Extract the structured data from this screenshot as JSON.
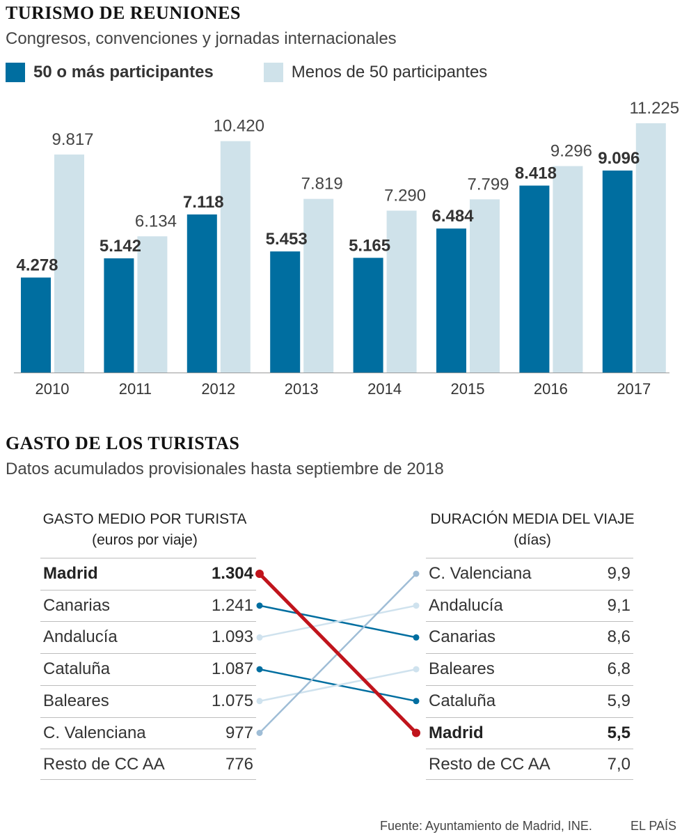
{
  "chart1": {
    "title": "TURISMO DE REUNIONES",
    "subtitle": "Congresos, convenciones y jornadas internacionales",
    "legend": [
      {
        "label": "50 o más participantes",
        "color": "#006ea0"
      },
      {
        "label": "Menos de 50 participantes",
        "color": "#cfe2ea"
      }
    ]
  },
  "chart_data": [
    {
      "type": "bar",
      "title": "TURISMO DE REUNIONES",
      "subtitle": "Congresos, convenciones y jornadas internacionales",
      "categories": [
        "2010",
        "2011",
        "2012",
        "2013",
        "2014",
        "2015",
        "2016",
        "2017"
      ],
      "series": [
        {
          "name": "50 o más participantes",
          "color": "#006ea0",
          "values": [
            4278,
            5142,
            7118,
            5453,
            5165,
            6484,
            8418,
            9096
          ],
          "labels": [
            "4.278",
            "5.142",
            "7.118",
            "5.453",
            "5.165",
            "6.484",
            "8.418",
            "9.096"
          ]
        },
        {
          "name": "Menos de 50 participantes",
          "color": "#cfe2ea",
          "values": [
            9817,
            6134,
            10420,
            7819,
            7290,
            7799,
            9296,
            11225
          ],
          "labels": [
            "9.817",
            "6.134",
            "10.420",
            "7.819",
            "7.290",
            "7.799",
            "9.296",
            "11.225"
          ]
        }
      ],
      "ylim": [
        0,
        11225
      ],
      "xlabel": "",
      "ylabel": "",
      "grid": false
    },
    {
      "type": "table",
      "title": "GASTO DE LOS TURISTAS",
      "subtitle": "Datos acumulados provisionales hasta septiembre de 2018",
      "left": {
        "heading": "GASTO MEDIO POR TURISTA",
        "unit": "(euros por viaje)",
        "rows": [
          {
            "region": "Madrid",
            "value": "1.304",
            "bold": true
          },
          {
            "region": "Canarias",
            "value": "1.241"
          },
          {
            "region": "Andalucía",
            "value": "1.093"
          },
          {
            "region": "Cataluña",
            "value": "1.087"
          },
          {
            "region": "Baleares",
            "value": "1.075"
          },
          {
            "region": "C. Valenciana",
            "value": "977"
          },
          {
            "region": "Resto de CC AA",
            "value": "776"
          }
        ]
      },
      "right": {
        "heading": "DURACIÓN MEDIA DEL VIAJE",
        "unit": "(días)",
        "rows": [
          {
            "region": "C. Valenciana",
            "value": "9,9"
          },
          {
            "region": "Andalucía",
            "value": "9,1"
          },
          {
            "region": "Canarias",
            "value": "8,6"
          },
          {
            "region": "Baleares",
            "value": "6,8"
          },
          {
            "region": "Cataluña",
            "value": "5,9"
          },
          {
            "region": "Madrid",
            "value": "5,5",
            "bold": true
          },
          {
            "region": "Resto de CC AA",
            "value": "7,0"
          }
        ]
      },
      "connectors": [
        {
          "region": "Madrid",
          "color": "#c0141c",
          "emphasis": true
        },
        {
          "region": "Canarias",
          "color": "#006ea0"
        },
        {
          "region": "Andalucía",
          "color": "#cfe2ee"
        },
        {
          "region": "Cataluña",
          "color": "#006ea0"
        },
        {
          "region": "Baleares",
          "color": "#cfe2ee"
        },
        {
          "region": "C. Valenciana",
          "color": "#9fbdd6"
        }
      ]
    }
  ],
  "chart2": {
    "title": "GASTO DE LOS TURISTAS",
    "subtitle": "Datos acumulados provisionales hasta septiembre de 2018"
  },
  "footer": {
    "source": "Fuente: Ayuntamiento de Madrid, INE.",
    "brand": "EL PAÍS"
  }
}
